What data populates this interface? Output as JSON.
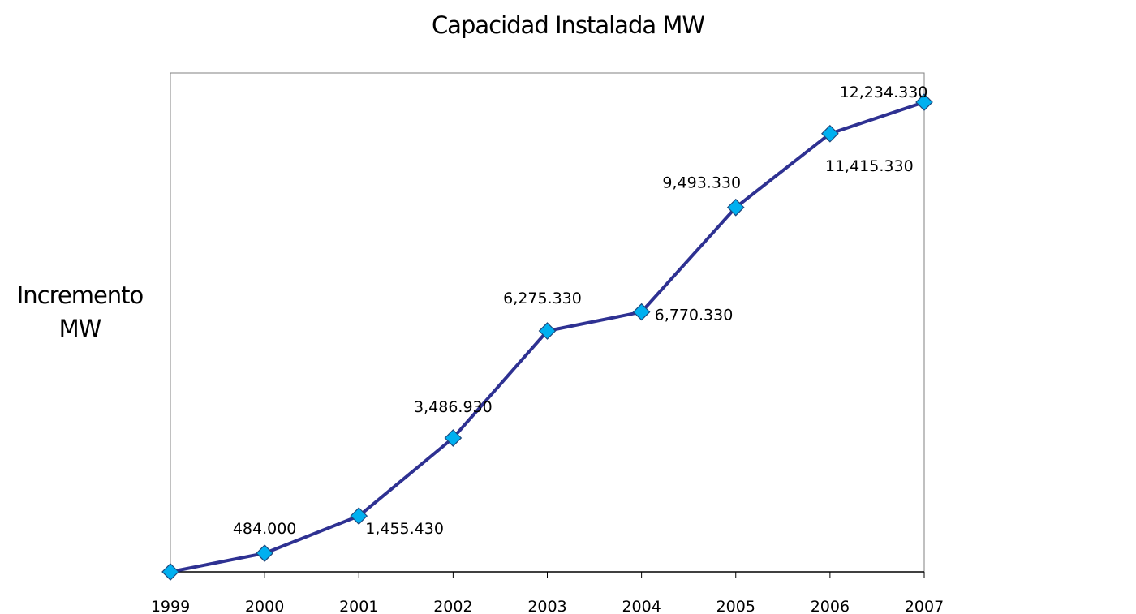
{
  "chart_data": {
    "type": "line",
    "title": "Capacidad Instalada MW",
    "xlabel": "",
    "ylabel": [
      "Incremento",
      "MW"
    ],
    "categories": [
      "1999",
      "2000",
      "2001",
      "2002",
      "2003",
      "2004",
      "2005",
      "2006",
      "2007"
    ],
    "values": [
      0,
      484.0,
      1455.43,
      3486.93,
      6275.33,
      6770.33,
      9493.33,
      11415.33,
      12234.33
    ],
    "data_labels": [
      "",
      "484.000",
      "1,455.430",
      "3,486.930",
      "6,275.330",
      "6,770.330",
      "9,493.330",
      "11,415.330",
      "12,234.330"
    ],
    "ylim": [
      0,
      12234.33
    ],
    "grid": false,
    "legend": "none",
    "colors": {
      "line": "#2e3192",
      "marker": "#00b0f0",
      "marker_edge": "#1f497d",
      "axis": "#808080"
    },
    "marker": "diamond"
  }
}
